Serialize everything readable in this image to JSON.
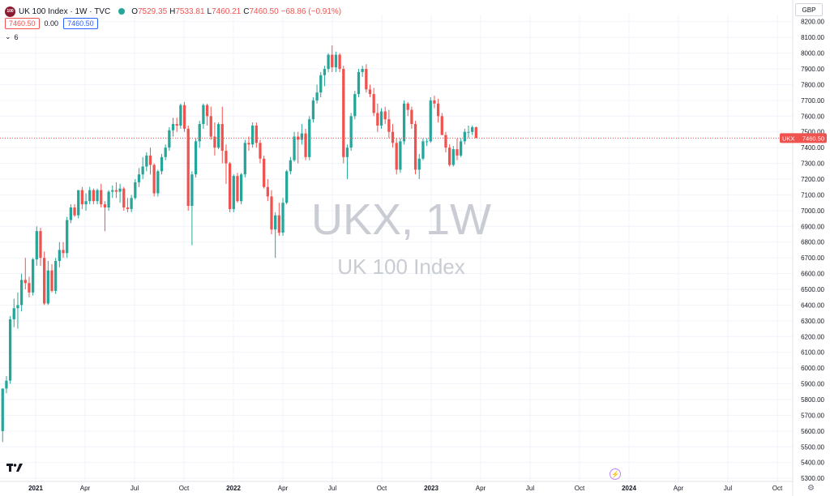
{
  "header": {
    "symbol_badge": "100",
    "title": "UK 100 Index · 1W · TVC",
    "open_label": "O",
    "open": "7529.35",
    "high_label": "H",
    "high": "7533.81",
    "low_label": "L",
    "low": "7460.21",
    "close_label": "C",
    "close": "7460.50",
    "change": "−68.86 (−0.91%)",
    "bid": "7460.50",
    "spread": "0.00",
    "ask": "7460.50",
    "indicators_count": "6",
    "currency": "GBP"
  },
  "watermark": {
    "line1": "UKX, 1W",
    "line2": "UK 100 Index"
  },
  "price_tag": {
    "symbol": "UKX",
    "price": "7460.50"
  },
  "colors": {
    "up": "#26a69a",
    "down": "#ef5350",
    "grid": "#f0f3fa",
    "axis_text": "#131722"
  },
  "chart_data": {
    "type": "candlestick",
    "title": "UK 100 Index · 1W · TVC",
    "ylabel": "",
    "ylim": [
      5280,
      8245
    ],
    "y_ticks": [
      5300,
      5400,
      5500,
      5600,
      5700,
      5800,
      5900,
      6000,
      6100,
      6200,
      6300,
      6400,
      6500,
      6600,
      6700,
      6800,
      6900,
      7000,
      7100,
      7200,
      7300,
      7400,
      7500,
      7600,
      7700,
      7800,
      7900,
      8000,
      8100,
      8200
    ],
    "y_tick_labels": [
      "5300.00",
      "5400.00",
      "5500.00",
      "5600.00",
      "5700.00",
      "5800.00",
      "5900.00",
      "6000.00",
      "6100.00",
      "6200.00",
      "6300.00",
      "6400.00",
      "6500.00",
      "6600.00",
      "6700.00",
      "6800.00",
      "6900.00",
      "7000.00",
      "7100.00",
      "7200.00",
      "7300.00",
      "7400.00",
      "7500.00",
      "7600.00",
      "7700.00",
      "7800.00",
      "7900.00",
      "8000.00",
      "8100.00",
      "8200.00"
    ],
    "x_ticks": [
      {
        "label": "2021",
        "bold": true,
        "t": 0.0
      },
      {
        "label": "Apr",
        "bold": false,
        "t": 0.25
      },
      {
        "label": "Jul",
        "bold": false,
        "t": 0.5
      },
      {
        "label": "Oct",
        "bold": false,
        "t": 0.75
      },
      {
        "label": "2022",
        "bold": true,
        "t": 1.0
      },
      {
        "label": "Apr",
        "bold": false,
        "t": 1.25
      },
      {
        "label": "Jul",
        "bold": false,
        "t": 1.5
      },
      {
        "label": "Oct",
        "bold": false,
        "t": 1.75
      },
      {
        "label": "2023",
        "bold": true,
        "t": 2.0
      },
      {
        "label": "Apr",
        "bold": false,
        "t": 2.25
      },
      {
        "label": "Jul",
        "bold": false,
        "t": 2.5
      },
      {
        "label": "Oct",
        "bold": false,
        "t": 2.75
      },
      {
        "label": "2024",
        "bold": true,
        "t": 3.0
      },
      {
        "label": "Apr",
        "bold": false,
        "t": 3.25
      },
      {
        "label": "Jul",
        "bold": false,
        "t": 3.5
      },
      {
        "label": "Oct",
        "bold": false,
        "t": 3.75
      }
    ],
    "candle_start_t": -0.167,
    "candle_step_t": 0.01915,
    "last_price": 7460.5,
    "candles": [
      {
        "o": 5600,
        "h": 5870,
        "l": 5530,
        "c": 5870
      },
      {
        "o": 5870,
        "h": 5950,
        "l": 5840,
        "c": 5920
      },
      {
        "o": 5920,
        "h": 6330,
        "l": 5900,
        "c": 6310
      },
      {
        "o": 6310,
        "h": 6440,
        "l": 6260,
        "c": 6380
      },
      {
        "o": 6380,
        "h": 6480,
        "l": 6250,
        "c": 6400
      },
      {
        "o": 6400,
        "h": 6600,
        "l": 6360,
        "c": 6560
      },
      {
        "o": 6560,
        "h": 6700,
        "l": 6500,
        "c": 6540
      },
      {
        "o": 6540,
        "h": 6580,
        "l": 6450,
        "c": 6480
      },
      {
        "o": 6480,
        "h": 6700,
        "l": 6460,
        "c": 6690
      },
      {
        "o": 6690,
        "h": 6900,
        "l": 6650,
        "c": 6870
      },
      {
        "o": 6870,
        "h": 6890,
        "l": 6650,
        "c": 6700
      },
      {
        "o": 6700,
        "h": 6740,
        "l": 6400,
        "c": 6410
      },
      {
        "o": 6410,
        "h": 6680,
        "l": 6400,
        "c": 6620
      },
      {
        "o": 6620,
        "h": 6660,
        "l": 6480,
        "c": 6490
      },
      {
        "o": 6490,
        "h": 6700,
        "l": 6470,
        "c": 6680
      },
      {
        "o": 6680,
        "h": 6800,
        "l": 6640,
        "c": 6750
      },
      {
        "o": 6750,
        "h": 6800,
        "l": 6700,
        "c": 6730
      },
      {
        "o": 6730,
        "h": 6960,
        "l": 6700,
        "c": 6940
      },
      {
        "o": 6940,
        "h": 7040,
        "l": 6920,
        "c": 7020
      },
      {
        "o": 7020,
        "h": 7040,
        "l": 6960,
        "c": 6970
      },
      {
        "o": 6970,
        "h": 7130,
        "l": 6950,
        "c": 7130
      },
      {
        "o": 7130,
        "h": 7150,
        "l": 7010,
        "c": 7040
      },
      {
        "o": 7040,
        "h": 7110,
        "l": 7000,
        "c": 7060
      },
      {
        "o": 7060,
        "h": 7150,
        "l": 7040,
        "c": 7130
      },
      {
        "o": 7130,
        "h": 7140,
        "l": 7040,
        "c": 7060
      },
      {
        "o": 7060,
        "h": 7140,
        "l": 7040,
        "c": 7130
      },
      {
        "o": 7130,
        "h": 7170,
        "l": 7020,
        "c": 7040
      },
      {
        "o": 7040,
        "h": 7060,
        "l": 6870,
        "c": 7020
      },
      {
        "o": 7020,
        "h": 7130,
        "l": 7000,
        "c": 7120
      },
      {
        "o": 7120,
        "h": 7160,
        "l": 7080,
        "c": 7130
      },
      {
        "o": 7130,
        "h": 7180,
        "l": 7080,
        "c": 7120
      },
      {
        "o": 7120,
        "h": 7170,
        "l": 7050,
        "c": 7140
      },
      {
        "o": 7140,
        "h": 7150,
        "l": 7000,
        "c": 7020
      },
      {
        "o": 7020,
        "h": 7080,
        "l": 6990,
        "c": 7010
      },
      {
        "o": 7010,
        "h": 7100,
        "l": 6990,
        "c": 7080
      },
      {
        "o": 7080,
        "h": 7200,
        "l": 7070,
        "c": 7180
      },
      {
        "o": 7180,
        "h": 7270,
        "l": 7150,
        "c": 7230
      },
      {
        "o": 7230,
        "h": 7340,
        "l": 7200,
        "c": 7280
      },
      {
        "o": 7280,
        "h": 7370,
        "l": 7250,
        "c": 7350
      },
      {
        "o": 7350,
        "h": 7400,
        "l": 7230,
        "c": 7290
      },
      {
        "o": 7290,
        "h": 7300,
        "l": 7090,
        "c": 7110
      },
      {
        "o": 7110,
        "h": 7260,
        "l": 7090,
        "c": 7250
      },
      {
        "o": 7250,
        "h": 7360,
        "l": 7230,
        "c": 7340
      },
      {
        "o": 7340,
        "h": 7420,
        "l": 7320,
        "c": 7400
      },
      {
        "o": 7400,
        "h": 7530,
        "l": 7380,
        "c": 7510
      },
      {
        "o": 7510,
        "h": 7590,
        "l": 7470,
        "c": 7550
      },
      {
        "o": 7550,
        "h": 7590,
        "l": 7500,
        "c": 7540
      },
      {
        "o": 7540,
        "h": 7680,
        "l": 7520,
        "c": 7670
      },
      {
        "o": 7670,
        "h": 7690,
        "l": 7500,
        "c": 7520
      },
      {
        "o": 7520,
        "h": 7540,
        "l": 7000,
        "c": 7030
      },
      {
        "o": 7030,
        "h": 7250,
        "l": 6780,
        "c": 7230
      },
      {
        "o": 7230,
        "h": 7460,
        "l": 7210,
        "c": 7440
      },
      {
        "o": 7440,
        "h": 7570,
        "l": 7400,
        "c": 7550
      },
      {
        "o": 7550,
        "h": 7680,
        "l": 7520,
        "c": 7670
      },
      {
        "o": 7670,
        "h": 7680,
        "l": 7540,
        "c": 7600
      },
      {
        "o": 7600,
        "h": 7660,
        "l": 7450,
        "c": 7470
      },
      {
        "o": 7470,
        "h": 7560,
        "l": 7350,
        "c": 7400
      },
      {
        "o": 7400,
        "h": 7560,
        "l": 7390,
        "c": 7550
      },
      {
        "o": 7550,
        "h": 7660,
        "l": 7300,
        "c": 7380
      },
      {
        "o": 7380,
        "h": 7420,
        "l": 7170,
        "c": 7300
      },
      {
        "o": 7300,
        "h": 7310,
        "l": 6990,
        "c": 7010
      },
      {
        "o": 7010,
        "h": 7230,
        "l": 6990,
        "c": 7220
      },
      {
        "o": 7220,
        "h": 7240,
        "l": 7050,
        "c": 7060
      },
      {
        "o": 7060,
        "h": 7240,
        "l": 7040,
        "c": 7230
      },
      {
        "o": 7230,
        "h": 7450,
        "l": 7210,
        "c": 7430
      },
      {
        "o": 7430,
        "h": 7470,
        "l": 7380,
        "c": 7420
      },
      {
        "o": 7420,
        "h": 7560,
        "l": 7400,
        "c": 7540
      },
      {
        "o": 7540,
        "h": 7560,
        "l": 7400,
        "c": 7430
      },
      {
        "o": 7430,
        "h": 7450,
        "l": 7300,
        "c": 7330
      },
      {
        "o": 7330,
        "h": 7350,
        "l": 7140,
        "c": 7150
      },
      {
        "o": 7150,
        "h": 7200,
        "l": 7060,
        "c": 7090
      },
      {
        "o": 7090,
        "h": 7130,
        "l": 6850,
        "c": 6880
      },
      {
        "o": 6880,
        "h": 6990,
        "l": 6700,
        "c": 6970
      },
      {
        "o": 6970,
        "h": 7050,
        "l": 6840,
        "c": 6860
      },
      {
        "o": 6860,
        "h": 7080,
        "l": 6840,
        "c": 7050
      },
      {
        "o": 7050,
        "h": 7260,
        "l": 7040,
        "c": 7250
      },
      {
        "o": 7250,
        "h": 7340,
        "l": 7230,
        "c": 7320
      },
      {
        "o": 7320,
        "h": 7500,
        "l": 7310,
        "c": 7470
      },
      {
        "o": 7470,
        "h": 7500,
        "l": 7300,
        "c": 7450
      },
      {
        "o": 7450,
        "h": 7550,
        "l": 7420,
        "c": 7490
      },
      {
        "o": 7490,
        "h": 7520,
        "l": 7320,
        "c": 7340
      },
      {
        "o": 7340,
        "h": 7600,
        "l": 7320,
        "c": 7580
      },
      {
        "o": 7580,
        "h": 7720,
        "l": 7560,
        "c": 7700
      },
      {
        "o": 7700,
        "h": 7800,
        "l": 7680,
        "c": 7750
      },
      {
        "o": 7750,
        "h": 7880,
        "l": 7720,
        "c": 7860
      },
      {
        "o": 7860,
        "h": 7920,
        "l": 7790,
        "c": 7900
      },
      {
        "o": 7900,
        "h": 8000,
        "l": 7880,
        "c": 7990
      },
      {
        "o": 7990,
        "h": 8050,
        "l": 7880,
        "c": 7910
      },
      {
        "o": 7910,
        "h": 8010,
        "l": 7880,
        "c": 7990
      },
      {
        "o": 7990,
        "h": 8000,
        "l": 7880,
        "c": 7900
      },
      {
        "o": 7900,
        "h": 7920,
        "l": 7300,
        "c": 7340
      },
      {
        "o": 7340,
        "h": 7420,
        "l": 7200,
        "c": 7400
      },
      {
        "o": 7400,
        "h": 7620,
        "l": 7380,
        "c": 7600
      },
      {
        "o": 7600,
        "h": 7760,
        "l": 7580,
        "c": 7740
      },
      {
        "o": 7740,
        "h": 7900,
        "l": 7720,
        "c": 7880
      },
      {
        "o": 7880,
        "h": 7920,
        "l": 7850,
        "c": 7900
      },
      {
        "o": 7900,
        "h": 7930,
        "l": 7750,
        "c": 7770
      },
      {
        "o": 7770,
        "h": 7800,
        "l": 7720,
        "c": 7740
      },
      {
        "o": 7740,
        "h": 7780,
        "l": 7600,
        "c": 7620
      },
      {
        "o": 7620,
        "h": 7680,
        "l": 7500,
        "c": 7540
      },
      {
        "o": 7540,
        "h": 7650,
        "l": 7520,
        "c": 7630
      },
      {
        "o": 7630,
        "h": 7660,
        "l": 7550,
        "c": 7580
      },
      {
        "o": 7580,
        "h": 7640,
        "l": 7460,
        "c": 7500
      },
      {
        "o": 7500,
        "h": 7550,
        "l": 7400,
        "c": 7430
      },
      {
        "o": 7430,
        "h": 7460,
        "l": 7230,
        "c": 7260
      },
      {
        "o": 7260,
        "h": 7460,
        "l": 7240,
        "c": 7440
      },
      {
        "o": 7440,
        "h": 7700,
        "l": 7420,
        "c": 7680
      },
      {
        "o": 7680,
        "h": 7690,
        "l": 7600,
        "c": 7640
      },
      {
        "o": 7640,
        "h": 7660,
        "l": 7520,
        "c": 7550
      },
      {
        "o": 7550,
        "h": 7570,
        "l": 7230,
        "c": 7260
      },
      {
        "o": 7260,
        "h": 7360,
        "l": 7200,
        "c": 7330
      },
      {
        "o": 7330,
        "h": 7460,
        "l": 7320,
        "c": 7440
      },
      {
        "o": 7440,
        "h": 7460,
        "l": 7410,
        "c": 7440
      },
      {
        "o": 7440,
        "h": 7720,
        "l": 7430,
        "c": 7700
      },
      {
        "o": 7700,
        "h": 7730,
        "l": 7650,
        "c": 7680
      },
      {
        "o": 7680,
        "h": 7710,
        "l": 7560,
        "c": 7600
      },
      {
        "o": 7600,
        "h": 7620,
        "l": 7480,
        "c": 7480
      },
      {
        "o": 7480,
        "h": 7500,
        "l": 7370,
        "c": 7400
      },
      {
        "o": 7400,
        "h": 7420,
        "l": 7280,
        "c": 7290
      },
      {
        "o": 7290,
        "h": 7410,
        "l": 7280,
        "c": 7390
      },
      {
        "o": 7390,
        "h": 7460,
        "l": 7320,
        "c": 7350
      },
      {
        "o": 7350,
        "h": 7460,
        "l": 7340,
        "c": 7440
      },
      {
        "o": 7440,
        "h": 7520,
        "l": 7420,
        "c": 7500
      },
      {
        "o": 7500,
        "h": 7540,
        "l": 7460,
        "c": 7500
      },
      {
        "o": 7500,
        "h": 7540,
        "l": 7480,
        "c": 7529.35
      },
      {
        "o": 7529.35,
        "h": 7533.81,
        "l": 7460.21,
        "c": 7460.5
      }
    ]
  },
  "bottom": {
    "tv_logo": "tradingview-logo-icon",
    "flash": "⚡",
    "settings": "⚙"
  }
}
